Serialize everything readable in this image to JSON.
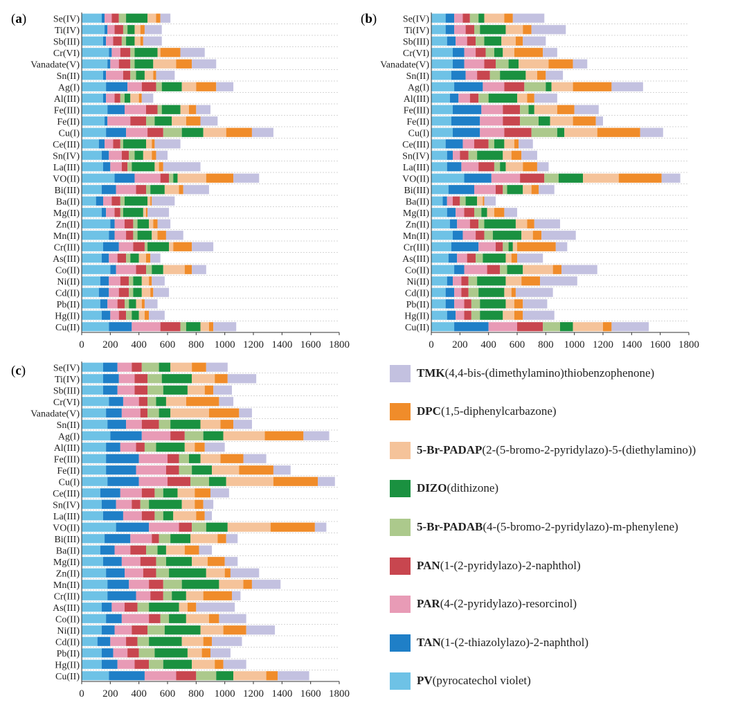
{
  "figure": {
    "panel_labels": [
      "a",
      "b",
      "c"
    ]
  },
  "legend": [
    {
      "abbr": "TMK",
      "desc": "(4,4-bis-(dimethylamino)thiobenzophenone)",
      "color": "#c3c1e0"
    },
    {
      "abbr": "DPC",
      "desc": "(1,5-diphenylcarbazone)",
      "color": "#f08c2a"
    },
    {
      "abbr": "5-Br-PADAP",
      "desc": "(2-(5-bromo-2-pyridylazo)-5-(diethylamino))",
      "color": "#f5c39a"
    },
    {
      "abbr": "DIZO",
      "desc": "(dithizone)",
      "color": "#1a9140"
    },
    {
      "abbr": "5-Br-PADAB",
      "desc": "(4-(5-bromo-2-pyridylazo)-m-phenylene)",
      "color": "#acc98c"
    },
    {
      "abbr": "PAN",
      "desc": "(1-(2-pyridylazo)-2-naphthol)",
      "color": "#c8464f"
    },
    {
      "abbr": "PAR",
      "desc": "(4-(2-pyridylazo)-resorcinol)",
      "color": "#e89bb6"
    },
    {
      "abbr": "TAN",
      "desc": "(1-(2-thiazolylazo)-2-naphthol)",
      "color": "#1f7fc7"
    },
    {
      "abbr": "PV",
      "desc": "(pyrocatechol violet)",
      "color": "#6ec2e6"
    }
  ],
  "chart_data": [
    {
      "panel": "a",
      "type": "bar",
      "orientation": "horizontal",
      "stacked": true,
      "xlim": [
        0,
        1800
      ],
      "xticks": [
        "0",
        "200",
        "400",
        "600",
        "800",
        "1000",
        "1200",
        "1400",
        "1600",
        "1800"
      ],
      "categories": [
        "Se(IV)",
        "Ti(IV)",
        "Sb(III)",
        "Cr(VI)",
        "Vanadate(V)",
        "Sn(II)",
        "Ag(I)",
        "Al(III)",
        "Fe(III)",
        "Fe(II)",
        "Cu(I)",
        "Ce(III)",
        "Sn(IV)",
        "La(III)",
        "VO(II)",
        "Bi(III)",
        "Ba(II)",
        "Mg(II)",
        "Zn(II)",
        "Mn(II)",
        "Cr(III)",
        "As(III)",
        "Co(II)",
        "Ni(II)",
        "Cd(II)",
        "Pb(II)",
        "Hg(II)",
        "Cu(II)"
      ],
      "series": [
        {
          "name": "PV",
          "values": [
            140,
            160,
            150,
            190,
            180,
            150,
            170,
            150,
            180,
            160,
            170,
            120,
            140,
            150,
            230,
            140,
            100,
            140,
            200,
            190,
            150,
            140,
            200,
            130,
            120,
            130,
            140,
            190
          ]
        },
        {
          "name": "TAN",
          "values": [
            20,
            20,
            20,
            20,
            20,
            20,
            150,
            20,
            120,
            20,
            140,
            40,
            50,
            50,
            140,
            100,
            50,
            30,
            30,
            40,
            110,
            50,
            40,
            60,
            70,
            50,
            60,
            160
          ]
        },
        {
          "name": "PAR",
          "values": [
            50,
            50,
            50,
            60,
            60,
            120,
            100,
            60,
            150,
            160,
            150,
            60,
            90,
            80,
            180,
            140,
            60,
            60,
            70,
            80,
            100,
            60,
            140,
            80,
            70,
            70,
            60,
            200
          ]
        },
        {
          "name": "PAN",
          "values": [
            50,
            60,
            60,
            70,
            80,
            50,
            100,
            40,
            80,
            110,
            110,
            50,
            50,
            40,
            60,
            70,
            60,
            40,
            60,
            50,
            80,
            60,
            70,
            60,
            70,
            50,
            50,
            140
          ]
        },
        {
          "name": "5-Br-PADAB",
          "values": [
            50,
            30,
            30,
            30,
            30,
            40,
            40,
            30,
            30,
            60,
            130,
            20,
            40,
            30,
            30,
            30,
            30,
            20,
            30,
            30,
            20,
            30,
            40,
            30,
            30,
            30,
            40,
            40
          ]
        },
        {
          "name": "DIZO",
          "values": [
            150,
            50,
            60,
            160,
            130,
            60,
            140,
            40,
            130,
            120,
            150,
            160,
            60,
            160,
            30,
            100,
            160,
            140,
            80,
            100,
            150,
            60,
            80,
            60,
            60,
            50,
            50,
            100
          ]
        },
        {
          "name": "5-Br-PADAP",
          "values": [
            60,
            40,
            40,
            20,
            160,
            60,
            100,
            60,
            60,
            100,
            160,
            40,
            60,
            30,
            200,
            100,
            20,
            20,
            30,
            40,
            30,
            50,
            150,
            50,
            60,
            40,
            40,
            60
          ]
        },
        {
          "name": "DPC",
          "values": [
            30,
            30,
            20,
            140,
            110,
            20,
            140,
            20,
            50,
            100,
            180,
            20,
            30,
            30,
            190,
            30,
            10,
            10,
            30,
            60,
            130,
            30,
            50,
            20,
            20,
            20,
            30,
            30
          ]
        },
        {
          "name": "TMK",
          "values": [
            70,
            120,
            130,
            170,
            170,
            130,
            120,
            80,
            100,
            120,
            150,
            180,
            80,
            260,
            180,
            180,
            160,
            150,
            90,
            120,
            150,
            70,
            100,
            90,
            110,
            90,
            110,
            160
          ]
        }
      ]
    },
    {
      "panel": "b",
      "type": "bar",
      "orientation": "horizontal",
      "stacked": true,
      "xlim": [
        0,
        1800
      ],
      "xticks": [
        "0",
        "200",
        "400",
        "600",
        "800",
        "1000",
        "1200",
        "1400",
        "1600",
        "1800"
      ],
      "categories": [
        "Se(IV)",
        "Ti(IV)",
        "Sb(III)",
        "Cr(VI)",
        "Vanadate(V)",
        "Sn(II)",
        "Ag(I)",
        "Al(III)",
        "Fe(III)",
        "Fe(II)",
        "Cu(I)",
        "Ce(III)",
        "Sn(IV)",
        "La(III)",
        "VO(II)",
        "Bi(III)",
        "Ba(II)",
        "Mg(II)",
        "Zn(II)",
        "Mn(II)",
        "Cr(III)",
        "As(III)",
        "Co(II)",
        "Ni(II)",
        "Cd(II)",
        "Pb(II)",
        "Hg(II)",
        "Cu(II)"
      ],
      "series": [
        {
          "name": "PV",
          "values": [
            100,
            100,
            110,
            150,
            150,
            140,
            160,
            130,
            150,
            140,
            150,
            100,
            110,
            110,
            230,
            120,
            80,
            110,
            130,
            150,
            140,
            120,
            160,
            110,
            100,
            100,
            110,
            160
          ]
        },
        {
          "name": "TAN",
          "values": [
            60,
            60,
            60,
            80,
            80,
            100,
            200,
            60,
            200,
            200,
            190,
            120,
            40,
            100,
            190,
            180,
            30,
            60,
            50,
            70,
            190,
            60,
            70,
            40,
            60,
            60,
            60,
            240
          ]
        },
        {
          "name": "PAR",
          "values": [
            60,
            80,
            80,
            80,
            140,
            80,
            150,
            80,
            150,
            160,
            170,
            80,
            50,
            120,
            200,
            150,
            40,
            60,
            90,
            90,
            120,
            70,
            160,
            60,
            50,
            70,
            60,
            200
          ]
        },
        {
          "name": "PAN",
          "values": [
            50,
            60,
            60,
            70,
            80,
            90,
            140,
            60,
            120,
            120,
            190,
            100,
            60,
            110,
            170,
            50,
            50,
            70,
            60,
            60,
            50,
            60,
            90,
            50,
            50,
            50,
            50,
            180
          ]
        },
        {
          "name": "5-Br-PADAB",
          "values": [
            60,
            40,
            60,
            60,
            90,
            70,
            150,
            70,
            60,
            130,
            180,
            40,
            60,
            40,
            100,
            30,
            40,
            50,
            40,
            60,
            40,
            50,
            50,
            60,
            70,
            60,
            60,
            120
          ]
        },
        {
          "name": "DIZO",
          "values": [
            40,
            180,
            120,
            60,
            70,
            180,
            40,
            200,
            40,
            80,
            50,
            70,
            180,
            40,
            170,
            110,
            80,
            40,
            220,
            200,
            30,
            160,
            110,
            200,
            180,
            180,
            160,
            90
          ]
        },
        {
          "name": "5-Br-PADAP",
          "values": [
            140,
            120,
            100,
            80,
            210,
            80,
            150,
            70,
            160,
            160,
            230,
            70,
            60,
            120,
            250,
            60,
            40,
            50,
            80,
            80,
            30,
            40,
            210,
            110,
            50,
            60,
            80,
            210
          ]
        },
        {
          "name": "DPC",
          "values": [
            60,
            60,
            50,
            200,
            170,
            60,
            270,
            50,
            120,
            160,
            300,
            30,
            70,
            100,
            300,
            50,
            10,
            70,
            50,
            60,
            270,
            40,
            60,
            130,
            30,
            60,
            60,
            60
          ]
        },
        {
          "name": "TMK",
          "values": [
            220,
            240,
            160,
            100,
            100,
            120,
            220,
            160,
            170,
            50,
            160,
            100,
            110,
            80,
            130,
            110,
            80,
            90,
            180,
            240,
            80,
            180,
            250,
            260,
            260,
            170,
            220,
            260
          ]
        }
      ]
    },
    {
      "panel": "c",
      "type": "bar",
      "orientation": "horizontal",
      "stacked": true,
      "xlim": [
        0,
        1800
      ],
      "xticks": [
        "0",
        "200",
        "400",
        "600",
        "800",
        "1000",
        "1200",
        "1400",
        "1600",
        "1800"
      ],
      "categories": [
        "Se(IV)",
        "Ti(IV)",
        "Sb(III)",
        "Cr(VI)",
        "Vanadate(V)",
        "Sn(II)",
        "Ag(I)",
        "Al(III)",
        "Fe(III)",
        "Fe(II)",
        "Cu(I)",
        "Ce(III)",
        "Sn(IV)",
        "La(III)",
        "VO(II)",
        "Bi(III)",
        "Ba(II)",
        "Mg(II)",
        "Zn(II)",
        "Mn(II)",
        "Cr(III)",
        "As(III)",
        "Co(II)",
        "Ni(II)",
        "Cd(II)",
        "Pb(II)",
        "Hg(II)",
        "Cu(II)"
      ],
      "series": [
        {
          "name": "PV",
          "values": [
            150,
            150,
            150,
            190,
            170,
            180,
            200,
            170,
            170,
            170,
            180,
            130,
            140,
            150,
            240,
            160,
            130,
            150,
            170,
            180,
            180,
            140,
            170,
            140,
            110,
            140,
            140,
            190
          ]
        },
        {
          "name": "TAN",
          "values": [
            100,
            110,
            100,
            100,
            110,
            130,
            220,
            100,
            230,
            210,
            220,
            140,
            100,
            140,
            230,
            180,
            100,
            130,
            130,
            150,
            200,
            70,
            110,
            90,
            90,
            80,
            110,
            250
          ]
        },
        {
          "name": "PAR",
          "values": [
            100,
            110,
            120,
            110,
            130,
            110,
            200,
            110,
            200,
            210,
            200,
            150,
            110,
            130,
            210,
            150,
            110,
            130,
            130,
            140,
            100,
            90,
            190,
            120,
            110,
            100,
            120,
            220
          ]
        },
        {
          "name": "PAN",
          "values": [
            70,
            90,
            90,
            60,
            50,
            120,
            100,
            60,
            80,
            90,
            160,
            90,
            60,
            90,
            90,
            50,
            110,
            110,
            90,
            100,
            90,
            90,
            80,
            110,
            80,
            80,
            100,
            140
          ]
        },
        {
          "name": "5-Br-PADAB",
          "values": [
            120,
            100,
            110,
            60,
            80,
            80,
            130,
            80,
            70,
            90,
            130,
            60,
            60,
            60,
            100,
            80,
            80,
            70,
            90,
            130,
            60,
            80,
            60,
            120,
            80,
            110,
            100,
            140
          ]
        },
        {
          "name": "DIZO",
          "values": [
            80,
            210,
            170,
            70,
            80,
            210,
            140,
            200,
            80,
            140,
            120,
            100,
            230,
            70,
            150,
            140,
            60,
            180,
            260,
            260,
            100,
            210,
            120,
            250,
            230,
            230,
            200,
            120
          ]
        },
        {
          "name": "5-Br-PADAP",
          "values": [
            150,
            160,
            120,
            140,
            270,
            140,
            290,
            70,
            140,
            190,
            330,
            120,
            90,
            160,
            300,
            190,
            130,
            110,
            130,
            170,
            120,
            60,
            160,
            160,
            150,
            100,
            160,
            230
          ]
        },
        {
          "name": "DPC",
          "values": [
            100,
            90,
            60,
            230,
            210,
            90,
            270,
            70,
            160,
            240,
            310,
            110,
            60,
            60,
            310,
            60,
            100,
            120,
            40,
            60,
            200,
            60,
            70,
            160,
            60,
            60,
            60,
            80
          ]
        },
        {
          "name": "TMK",
          "values": [
            150,
            200,
            130,
            100,
            90,
            130,
            180,
            140,
            160,
            120,
            120,
            130,
            70,
            50,
            80,
            80,
            90,
            90,
            200,
            200,
            60,
            270,
            190,
            200,
            210,
            140,
            160,
            220
          ]
        }
      ]
    }
  ]
}
